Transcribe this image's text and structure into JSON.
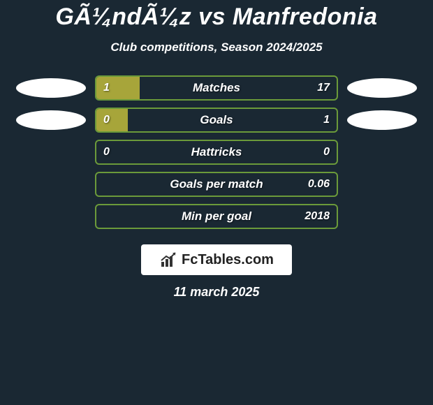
{
  "title": "GÃ¼ndÃ¼z vs Manfredonia",
  "subtitle": "Club competitions, Season 2024/2025",
  "colors": {
    "background": "#1a2833",
    "bar_border": "#6b9a3a",
    "bar_fill": "#a7a53a",
    "text": "#ffffff",
    "ellipse": "#ffffff",
    "logo_bg": "#ffffff",
    "logo_text": "#222222"
  },
  "rows": [
    {
      "label": "Matches",
      "left": "1",
      "right": "17",
      "fill_pct": 18,
      "show_badges": true
    },
    {
      "label": "Goals",
      "left": "0",
      "right": "1",
      "fill_pct": 13,
      "show_badges": true
    },
    {
      "label": "Hattricks",
      "left": "0",
      "right": "0",
      "fill_pct": 0,
      "show_badges": false
    },
    {
      "label": "Goals per match",
      "left": "",
      "right": "0.06",
      "fill_pct": 0,
      "show_badges": false
    },
    {
      "label": "Min per goal",
      "left": "",
      "right": "2018",
      "fill_pct": 0,
      "show_badges": false
    }
  ],
  "logo": {
    "text": "FcTables.com",
    "icon_name": "bar-chart-arrow-icon"
  },
  "date": "11 march 2025"
}
